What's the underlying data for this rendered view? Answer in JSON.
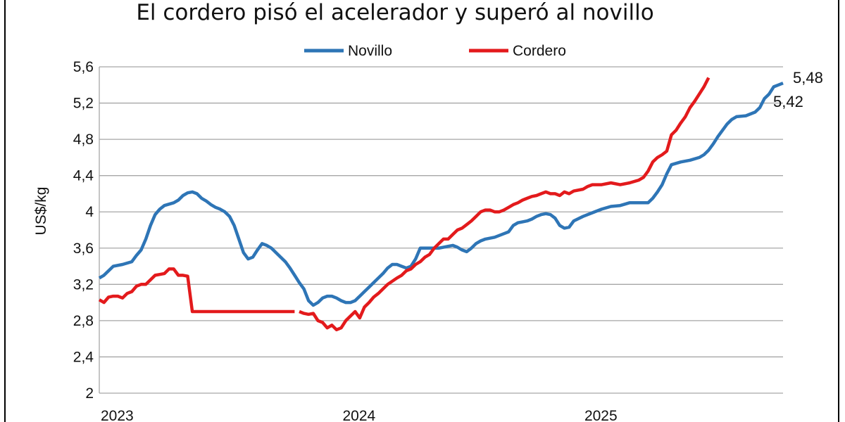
{
  "chart_data": {
    "type": "line",
    "title": "El cordero pisó el acelerador y superó al novillo",
    "ylabel": "US$/kg",
    "xlabel": "",
    "ylim": [
      2,
      5.6
    ],
    "yticks": [
      "2",
      "2,4",
      "2,8",
      "3,2",
      "3,6",
      "4",
      "4,4",
      "4,8",
      "5,2",
      "5,6"
    ],
    "xticks": [
      "2023",
      "2024",
      "2025"
    ],
    "xtick_positions": [
      0,
      52,
      104
    ],
    "xlim": [
      0,
      140
    ],
    "grid": true,
    "legend_position": "top-center",
    "end_labels": [
      "5,48",
      "5,42"
    ],
    "series": [
      {
        "name": "Novillo",
        "color": "#2e75b6",
        "points": [
          [
            0,
            3.27
          ],
          [
            1,
            3.3
          ],
          [
            2,
            3.35
          ],
          [
            3,
            3.4
          ],
          [
            5,
            3.42
          ],
          [
            7,
            3.45
          ],
          [
            8,
            3.52
          ],
          [
            9,
            3.58
          ],
          [
            10,
            3.7
          ],
          [
            11,
            3.85
          ],
          [
            12,
            3.97
          ],
          [
            13,
            4.03
          ],
          [
            14,
            4.07
          ],
          [
            16,
            4.1
          ],
          [
            17,
            4.13
          ],
          [
            18,
            4.18
          ],
          [
            19,
            4.21
          ],
          [
            20,
            4.22
          ],
          [
            21,
            4.2
          ],
          [
            22,
            4.15
          ],
          [
            23,
            4.12
          ],
          [
            24,
            4.08
          ],
          [
            25,
            4.05
          ],
          [
            26,
            4.03
          ],
          [
            27,
            4.0
          ],
          [
            28,
            3.95
          ],
          [
            29,
            3.85
          ],
          [
            30,
            3.7
          ],
          [
            31,
            3.55
          ],
          [
            32,
            3.48
          ],
          [
            33,
            3.5
          ],
          [
            34,
            3.58
          ],
          [
            35,
            3.65
          ],
          [
            36,
            3.63
          ],
          [
            37,
            3.6
          ],
          [
            38,
            3.55
          ],
          [
            40,
            3.45
          ],
          [
            41,
            3.38
          ],
          [
            42,
            3.3
          ],
          [
            43,
            3.22
          ],
          [
            44,
            3.15
          ],
          [
            45,
            3.02
          ],
          [
            46,
            2.97
          ],
          [
            47,
            3.0
          ],
          [
            48,
            3.05
          ],
          [
            49,
            3.07
          ],
          [
            50,
            3.07
          ],
          [
            51,
            3.05
          ],
          [
            52,
            3.02
          ],
          [
            53,
            3.0
          ],
          [
            54,
            3.0
          ],
          [
            55,
            3.02
          ],
          [
            56,
            3.07
          ],
          [
            57,
            3.12
          ],
          [
            58,
            3.17
          ],
          [
            59,
            3.22
          ],
          [
            60,
            3.27
          ],
          [
            61,
            3.32
          ],
          [
            62,
            3.38
          ],
          [
            63,
            3.42
          ],
          [
            64,
            3.42
          ],
          [
            65,
            3.4
          ],
          [
            66,
            3.38
          ],
          [
            67,
            3.4
          ],
          [
            68,
            3.48
          ],
          [
            69,
            3.6
          ],
          [
            71,
            3.6
          ],
          [
            73,
            3.6
          ],
          [
            75,
            3.62
          ],
          [
            76,
            3.63
          ],
          [
            77,
            3.61
          ],
          [
            78,
            3.58
          ],
          [
            79,
            3.56
          ],
          [
            80,
            3.6
          ],
          [
            81,
            3.65
          ],
          [
            82,
            3.68
          ],
          [
            83,
            3.7
          ],
          [
            85,
            3.72
          ],
          [
            87,
            3.76
          ],
          [
            88,
            3.78
          ],
          [
            89,
            3.85
          ],
          [
            90,
            3.88
          ],
          [
            91,
            3.89
          ],
          [
            92,
            3.9
          ],
          [
            93,
            3.92
          ],
          [
            94,
            3.95
          ],
          [
            95,
            3.97
          ],
          [
            96,
            3.98
          ],
          [
            97,
            3.97
          ],
          [
            98,
            3.93
          ],
          [
            99,
            3.85
          ],
          [
            100,
            3.82
          ],
          [
            101,
            3.83
          ],
          [
            102,
            3.9
          ],
          [
            104,
            3.95
          ],
          [
            106,
            3.99
          ],
          [
            108,
            4.03
          ],
          [
            110,
            4.06
          ],
          [
            112,
            4.07
          ],
          [
            114,
            4.1
          ],
          [
            116,
            4.1
          ],
          [
            118,
            4.1
          ],
          [
            119,
            4.15
          ],
          [
            120,
            4.22
          ],
          [
            121,
            4.3
          ],
          [
            122,
            4.42
          ],
          [
            123,
            4.52
          ],
          [
            125,
            4.55
          ],
          [
            127,
            4.57
          ],
          [
            129,
            4.6
          ],
          [
            130,
            4.63
          ],
          [
            131,
            4.68
          ],
          [
            132,
            4.75
          ],
          [
            133,
            4.83
          ],
          [
            134,
            4.9
          ],
          [
            135,
            4.97
          ],
          [
            136,
            5.02
          ],
          [
            137,
            5.05
          ],
          [
            139,
            5.06
          ],
          [
            140,
            5.08
          ],
          [
            141,
            5.1
          ],
          [
            142,
            5.15
          ],
          [
            143,
            5.25
          ],
          [
            144,
            5.3
          ],
          [
            145,
            5.38
          ],
          [
            146,
            5.4
          ],
          [
            147,
            5.42
          ]
        ]
      },
      {
        "name": "Cordero",
        "color": "#e31a1c",
        "segments": [
          [
            [
              0,
              3.03
            ],
            [
              1,
              3.0
            ],
            [
              2,
              3.06
            ],
            [
              3,
              3.07
            ],
            [
              4,
              3.07
            ],
            [
              5,
              3.05
            ],
            [
              6,
              3.1
            ],
            [
              7,
              3.12
            ],
            [
              8,
              3.18
            ],
            [
              9,
              3.2
            ],
            [
              10,
              3.2
            ],
            [
              11,
              3.25
            ],
            [
              12,
              3.3
            ],
            [
              13,
              3.31
            ],
            [
              14,
              3.32
            ],
            [
              15,
              3.37
            ],
            [
              16,
              3.37
            ],
            [
              17,
              3.3
            ],
            [
              18,
              3.3
            ],
            [
              19,
              3.29
            ],
            [
              20,
              2.9
            ],
            [
              22,
              2.9
            ],
            [
              24,
              2.9
            ],
            [
              26,
              2.9
            ],
            [
              28,
              2.9
            ],
            [
              30,
              2.9
            ],
            [
              32,
              2.9
            ],
            [
              34,
              2.9
            ],
            [
              36,
              2.9
            ],
            [
              38,
              2.9
            ],
            [
              40,
              2.9
            ],
            [
              42,
              2.9
            ]
          ],
          [
            [
              43,
              2.9
            ],
            [
              44,
              2.88
            ],
            [
              45,
              2.87
            ],
            [
              46,
              2.88
            ],
            [
              47,
              2.8
            ],
            [
              48,
              2.78
            ],
            [
              49,
              2.72
            ],
            [
              50,
              2.75
            ],
            [
              51,
              2.7
            ],
            [
              52,
              2.72
            ],
            [
              53,
              2.8
            ],
            [
              54,
              2.85
            ],
            [
              55,
              2.9
            ],
            [
              56,
              2.83
            ],
            [
              57,
              2.95
            ],
            [
              58,
              3.0
            ],
            [
              59,
              3.06
            ],
            [
              60,
              3.1
            ],
            [
              61,
              3.15
            ],
            [
              62,
              3.2
            ],
            [
              64,
              3.27
            ],
            [
              65,
              3.3
            ],
            [
              66,
              3.35
            ],
            [
              67,
              3.37
            ],
            [
              68,
              3.42
            ],
            [
              69,
              3.45
            ],
            [
              70,
              3.5
            ],
            [
              71,
              3.53
            ],
            [
              72,
              3.6
            ],
            [
              73,
              3.65
            ],
            [
              74,
              3.7
            ],
            [
              75,
              3.7
            ],
            [
              76,
              3.75
            ],
            [
              77,
              3.8
            ],
            [
              78,
              3.82
            ],
            [
              79,
              3.86
            ],
            [
              80,
              3.9
            ],
            [
              81,
              3.95
            ],
            [
              82,
              4.0
            ],
            [
              83,
              4.02
            ],
            [
              84,
              4.02
            ],
            [
              85,
              4.0
            ],
            [
              86,
              4.0
            ],
            [
              87,
              4.02
            ],
            [
              88,
              4.05
            ],
            [
              89,
              4.08
            ],
            [
              90,
              4.1
            ],
            [
              91,
              4.13
            ],
            [
              92,
              4.15
            ],
            [
              93,
              4.17
            ],
            [
              94,
              4.18
            ],
            [
              95,
              4.2
            ],
            [
              96,
              4.22
            ],
            [
              97,
              4.2
            ],
            [
              98,
              4.2
            ],
            [
              99,
              4.18
            ],
            [
              100,
              4.22
            ],
            [
              101,
              4.2
            ],
            [
              102,
              4.23
            ],
            [
              104,
              4.25
            ],
            [
              105,
              4.28
            ],
            [
              106,
              4.3
            ],
            [
              108,
              4.3
            ],
            [
              110,
              4.32
            ],
            [
              112,
              4.3
            ],
            [
              114,
              4.32
            ],
            [
              116,
              4.35
            ],
            [
              117,
              4.38
            ],
            [
              118,
              4.45
            ],
            [
              119,
              4.55
            ],
            [
              120,
              4.6
            ],
            [
              121,
              4.63
            ],
            [
              122,
              4.67
            ],
            [
              123,
              4.85
            ],
            [
              124,
              4.9
            ],
            [
              125,
              4.98
            ],
            [
              126,
              5.05
            ],
            [
              127,
              5.15
            ],
            [
              128,
              5.22
            ],
            [
              129,
              5.3
            ],
            [
              130,
              5.38
            ],
            [
              131,
              5.48
            ]
          ]
        ]
      }
    ]
  }
}
